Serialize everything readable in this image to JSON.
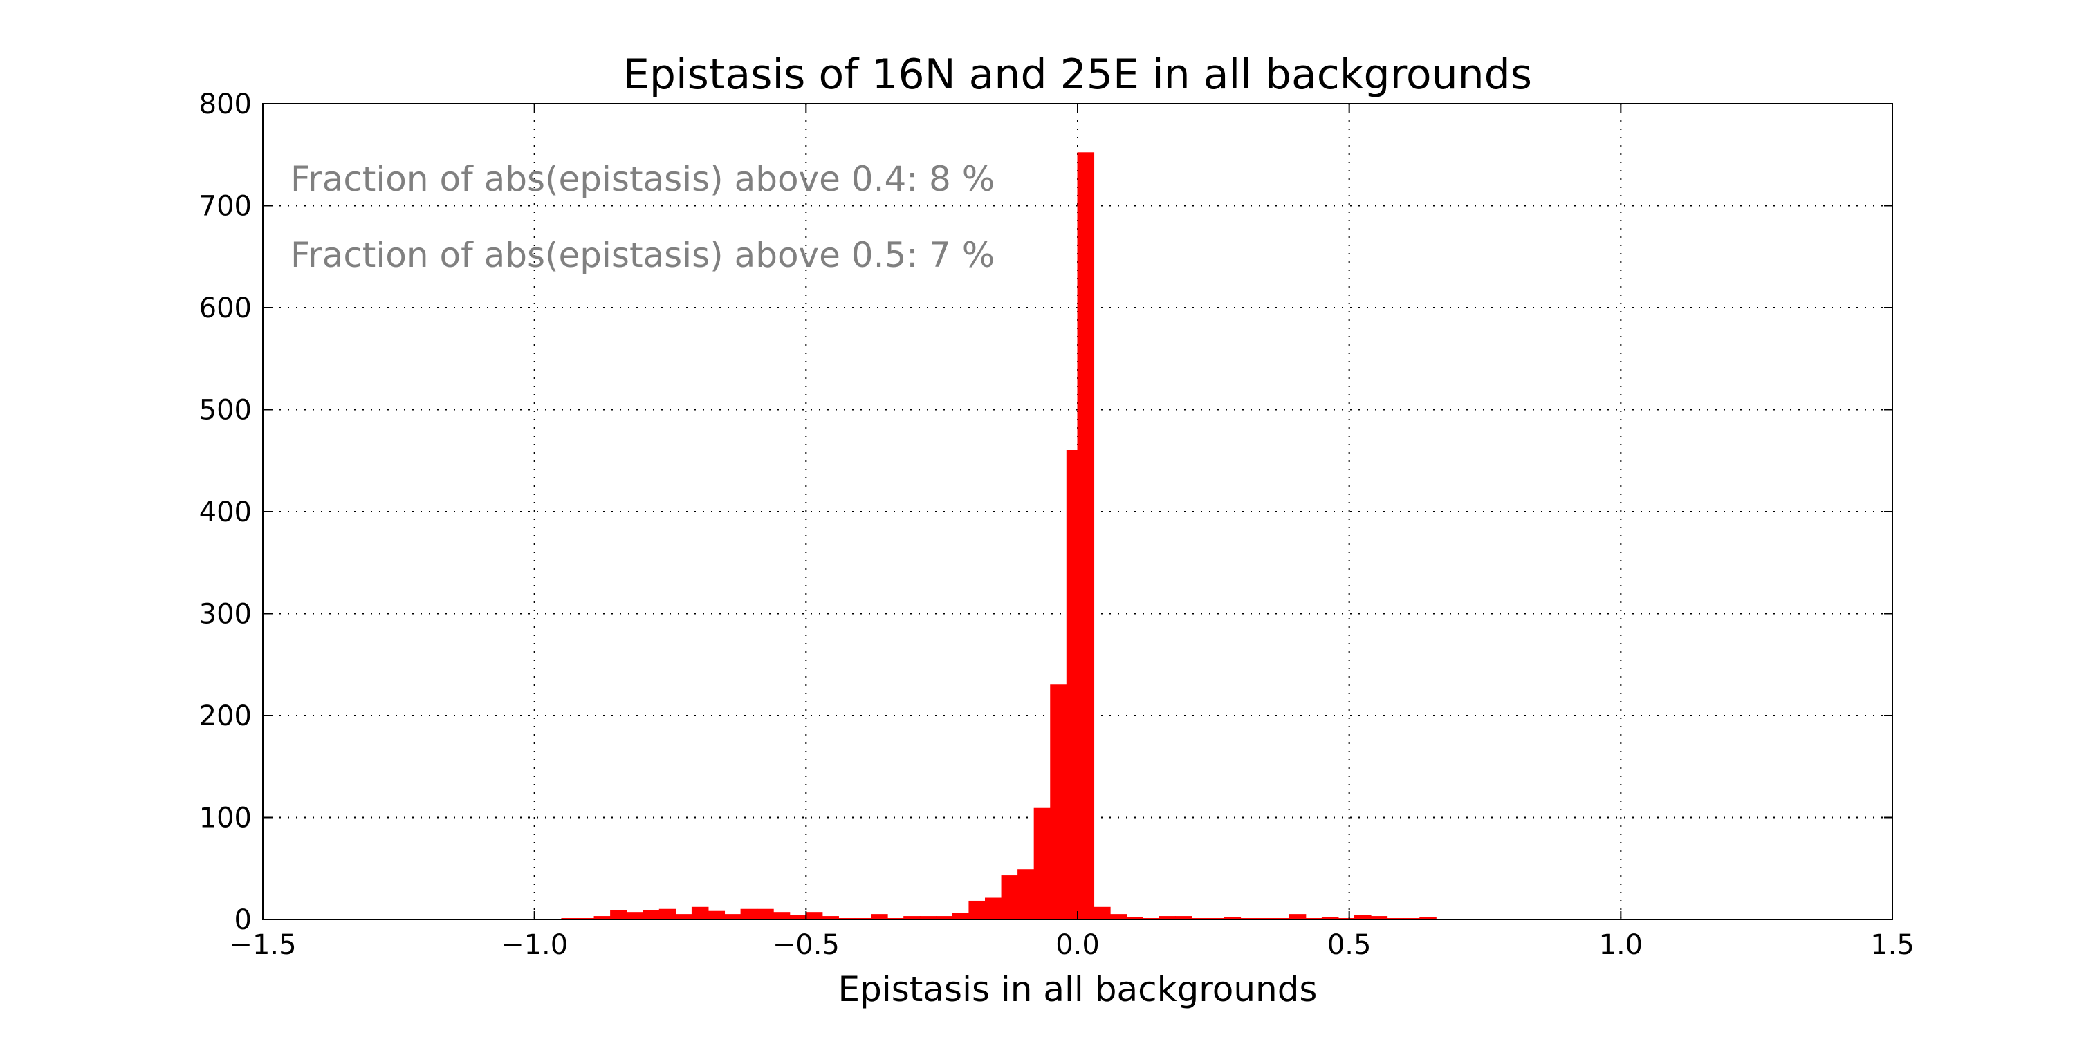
{
  "chart_data": {
    "type": "bar",
    "title": "Epistasis of 16N and 25E in all backgrounds",
    "xlabel": "Epistasis in all backgrounds",
    "ylabel": "",
    "xlim": [
      -1.5,
      1.5
    ],
    "ylim": [
      0,
      800
    ],
    "grid": true,
    "bar_color": "#ff0000",
    "annotation_color": "#808080",
    "xticks": [
      -1.5,
      -1.0,
      -0.5,
      0.0,
      0.5,
      1.0,
      1.5
    ],
    "xtick_labels": [
      "−1.5",
      "−1.0",
      "−0.5",
      "0.0",
      "0.5",
      "1.0",
      "1.5"
    ],
    "yticks": [
      0,
      100,
      200,
      300,
      400,
      500,
      600,
      700,
      800
    ],
    "ytick_labels": [
      "0",
      "100",
      "200",
      "300",
      "400",
      "500",
      "600",
      "700",
      "800"
    ],
    "annotations": [
      "Fraction of abs(epistasis) above 0.4: 8 %",
      "Fraction of abs(epistasis) above 0.5: 7 %"
    ],
    "bin_width": 0.03,
    "bins": [
      {
        "x0": -0.95,
        "value": 1
      },
      {
        "x0": -0.92,
        "value": 1
      },
      {
        "x0": -0.89,
        "value": 3
      },
      {
        "x0": -0.86,
        "value": 9
      },
      {
        "x0": -0.83,
        "value": 7
      },
      {
        "x0": -0.8,
        "value": 9
      },
      {
        "x0": -0.77,
        "value": 10
      },
      {
        "x0": -0.74,
        "value": 5
      },
      {
        "x0": -0.71,
        "value": 12
      },
      {
        "x0": -0.68,
        "value": 8
      },
      {
        "x0": -0.65,
        "value": 5
      },
      {
        "x0": -0.62,
        "value": 10
      },
      {
        "x0": -0.59,
        "value": 10
      },
      {
        "x0": -0.56,
        "value": 7
      },
      {
        "x0": -0.53,
        "value": 4
      },
      {
        "x0": -0.5,
        "value": 7
      },
      {
        "x0": -0.47,
        "value": 3
      },
      {
        "x0": -0.44,
        "value": 1
      },
      {
        "x0": -0.41,
        "value": 1
      },
      {
        "x0": -0.38,
        "value": 5
      },
      {
        "x0": -0.35,
        "value": 1
      },
      {
        "x0": -0.32,
        "value": 3
      },
      {
        "x0": -0.29,
        "value": 3
      },
      {
        "x0": -0.26,
        "value": 3
      },
      {
        "x0": -0.23,
        "value": 6
      },
      {
        "x0": -0.2,
        "value": 18
      },
      {
        "x0": -0.17,
        "value": 21
      },
      {
        "x0": -0.14,
        "value": 43
      },
      {
        "x0": -0.11,
        "value": 49
      },
      {
        "x0": -0.08,
        "value": 109
      },
      {
        "x0": -0.05,
        "value": 230
      },
      {
        "x0": -0.02,
        "value": 460
      },
      {
        "x0": 0.0,
        "value": 752
      },
      {
        "x0": 0.03,
        "value": 12
      },
      {
        "x0": 0.06,
        "value": 5
      },
      {
        "x0": 0.09,
        "value": 2
      },
      {
        "x0": 0.12,
        "value": 1
      },
      {
        "x0": 0.15,
        "value": 3
      },
      {
        "x0": 0.18,
        "value": 3
      },
      {
        "x0": 0.21,
        "value": 1
      },
      {
        "x0": 0.24,
        "value": 1
      },
      {
        "x0": 0.27,
        "value": 2
      },
      {
        "x0": 0.3,
        "value": 1
      },
      {
        "x0": 0.33,
        "value": 1
      },
      {
        "x0": 0.36,
        "value": 1
      },
      {
        "x0": 0.39,
        "value": 5
      },
      {
        "x0": 0.42,
        "value": 1
      },
      {
        "x0": 0.45,
        "value": 2
      },
      {
        "x0": 0.48,
        "value": 1
      },
      {
        "x0": 0.51,
        "value": 4
      },
      {
        "x0": 0.54,
        "value": 3
      },
      {
        "x0": 0.57,
        "value": 1
      },
      {
        "x0": 0.6,
        "value": 1
      },
      {
        "x0": 0.63,
        "value": 2
      }
    ]
  }
}
